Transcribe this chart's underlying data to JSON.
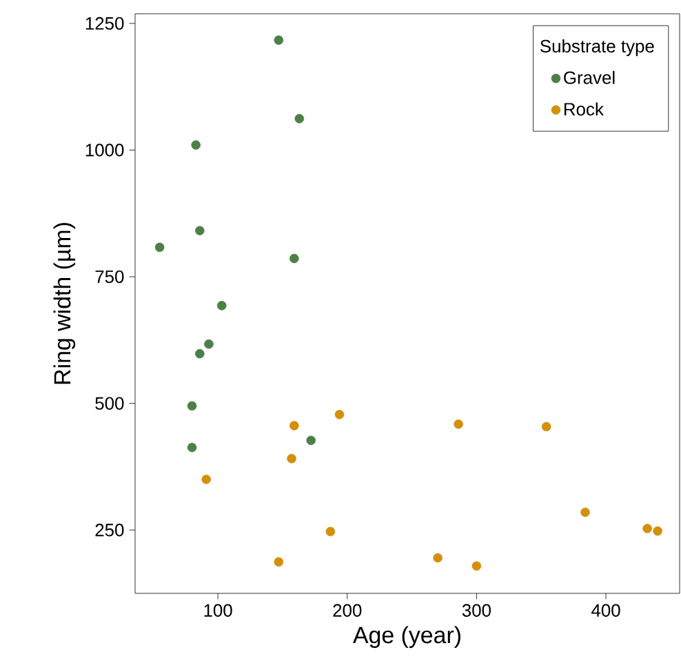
{
  "chart_data": {
    "type": "scatter",
    "xlabel": "Age (year)",
    "ylabel": "Ring width (µm)",
    "legend_title": "Substrate type",
    "legend": "top right",
    "marker": "circle",
    "xlim": [
      36,
      457
    ],
    "ylim": [
      125,
      1269
    ],
    "xticks": [
      100,
      200,
      300,
      400
    ],
    "yticks": [
      250,
      500,
      750,
      1000,
      1250
    ],
    "series": [
      {
        "name": "Gravel",
        "color": "#4d8049",
        "x": [
          147,
          163,
          83,
          55,
          86,
          159,
          103,
          93,
          86,
          80,
          80,
          172
        ],
        "values": [
          1217,
          1062,
          1010,
          808,
          841,
          786,
          693,
          617,
          598,
          495,
          413,
          427
        ]
      },
      {
        "name": "Rock",
        "color": "#d4900a",
        "x": [
          91,
          159,
          194,
          157,
          187,
          147,
          286,
          354,
          384,
          270,
          300,
          432,
          440
        ],
        "values": [
          350,
          456,
          478,
          391,
          247,
          187,
          459,
          454,
          285,
          195,
          179,
          253,
          248
        ]
      }
    ]
  }
}
